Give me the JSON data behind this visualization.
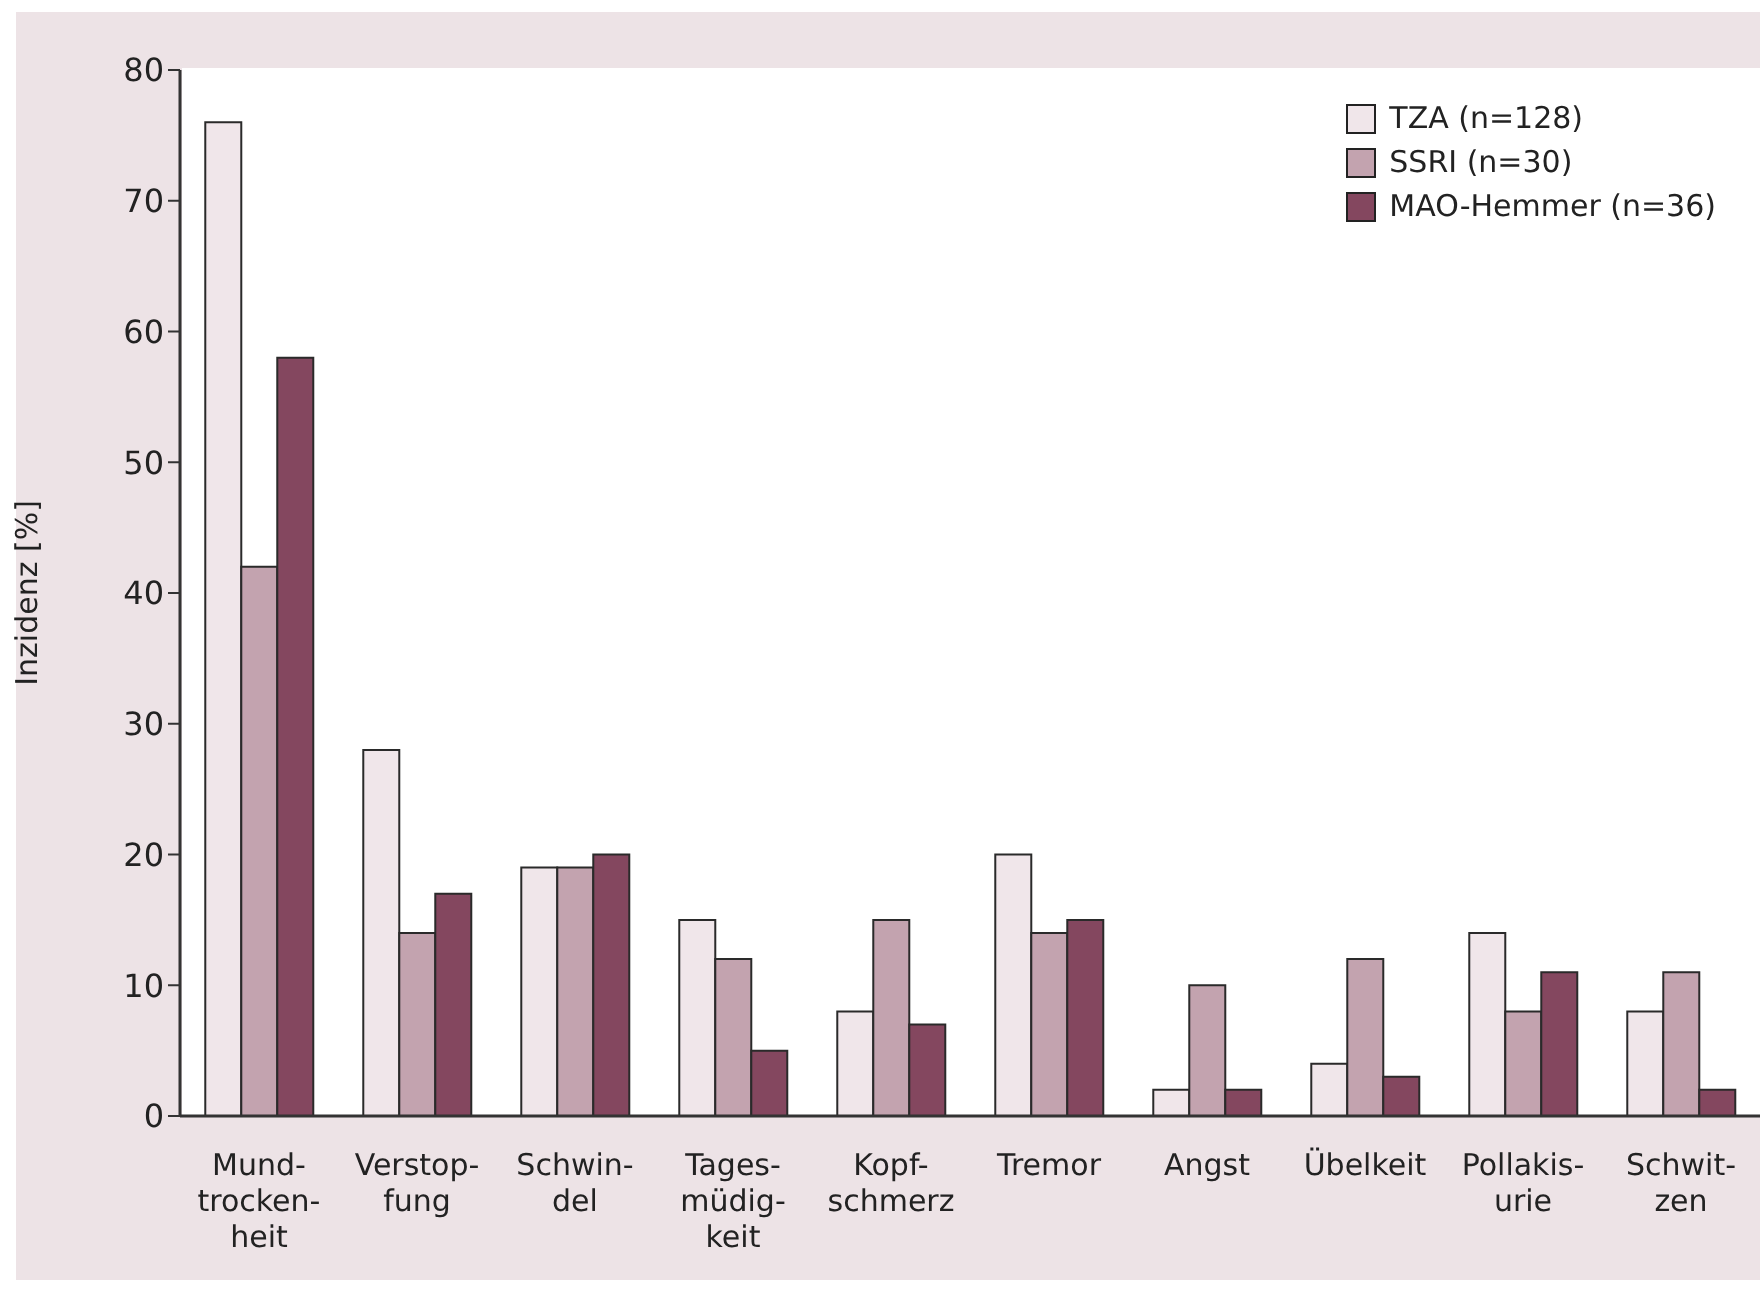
{
  "chart_data": {
    "type": "bar",
    "ylabel": "Inzidenz [%]",
    "categories": [
      "Mund-\ntrocken-\nheit",
      "Verstop-\nfung",
      "Schwin-\ndel",
      "Tages-\nmüdig-\nkeit",
      "Kopf-\nschmerz",
      "Tremor",
      "Angst",
      "Übelkeit",
      "Pollakis-\nurie",
      "Schwit-\nzen"
    ],
    "series": [
      {
        "name": "TZA (n=128)",
        "color": "#f0e6ea",
        "values": [
          76,
          28,
          19,
          15,
          8,
          20,
          2,
          4,
          14,
          8
        ]
      },
      {
        "name": "SSRI (n=30)",
        "color": "#c3a3af",
        "values": [
          42,
          14,
          19,
          12,
          15,
          14,
          10,
          12,
          8,
          11
        ]
      },
      {
        "name": "MAO-Hemmer (n=36)",
        "color": "#84475f",
        "values": [
          58,
          17,
          20,
          5,
          7,
          15,
          2,
          3,
          11,
          2
        ]
      }
    ],
    "ylim": [
      0,
      80
    ],
    "yticks": [
      0,
      10,
      20,
      30,
      40,
      50,
      60,
      70,
      80
    ],
    "legend": "top right"
  }
}
